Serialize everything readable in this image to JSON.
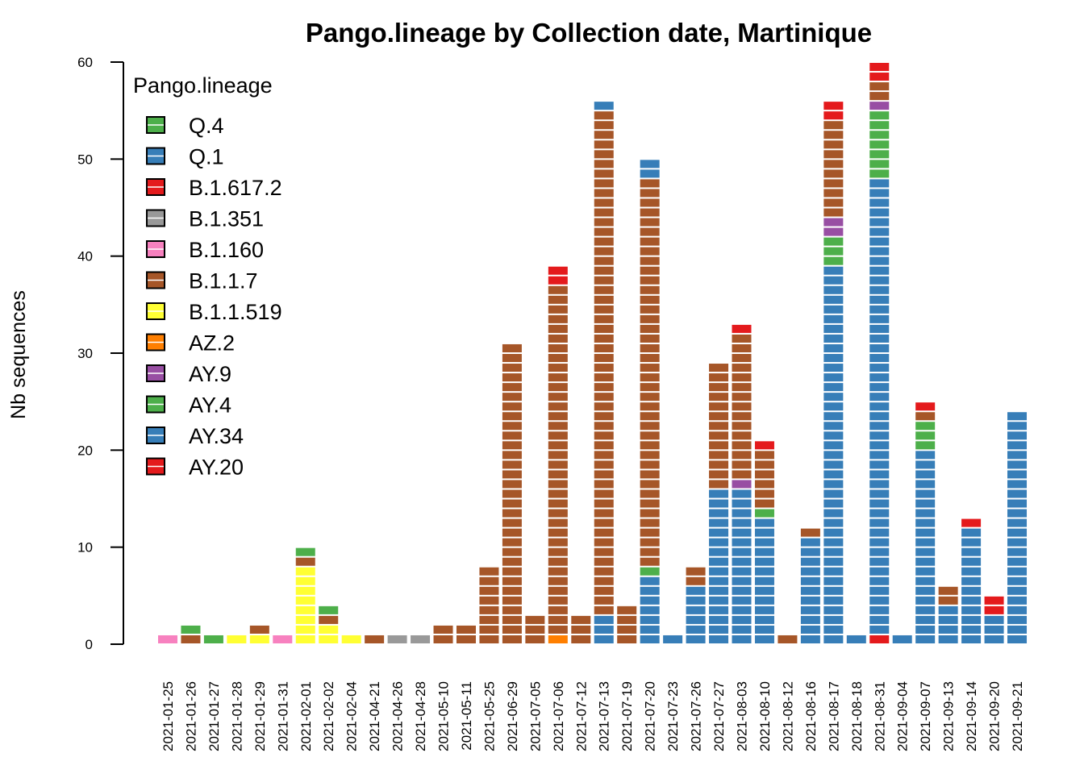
{
  "chart_data": {
    "type": "bar",
    "stacked": true,
    "title": "Pango.lineage by Collection date, Martinique",
    "xlabel": "",
    "ylabel": "Nb sequences",
    "ylim": [
      0,
      60
    ],
    "yticks": [
      0,
      10,
      20,
      30,
      40,
      50,
      60
    ],
    "grid": false,
    "legend": {
      "title": "Pango.lineage",
      "placement": "top-left",
      "entries": [
        "Q.4",
        "Q.1",
        "B.1.617.2",
        "B.1.351",
        "B.1.160",
        "B.1.1.7",
        "B.1.1.519",
        "AZ.2",
        "AY.9",
        "AY.4",
        "AY.34",
        "AY.20"
      ]
    },
    "colors": {
      "Q.4": "#4daf4a",
      "Q.1": "#377eb8",
      "B.1.617.2": "#e41a1c",
      "B.1.351": "#999999",
      "B.1.160": "#f781bf",
      "B.1.1.7": "#a65628",
      "B.1.1.519": "#ffff33",
      "AZ.2": "#ff7f00",
      "AY.9": "#984ea3",
      "AY.4": "#4daf4a",
      "AY.34": "#377eb8",
      "AY.20": "#e41a1c"
    },
    "categories": [
      "2021-01-25",
      "2021-01-26",
      "2021-01-27",
      "2021-01-28",
      "2021-01-29",
      "2021-01-31",
      "2021-02-01",
      "2021-02-02",
      "2021-02-04",
      "2021-04-21",
      "2021-04-26",
      "2021-04-28",
      "2021-05-10",
      "2021-05-11",
      "2021-05-25",
      "2021-06-29",
      "2021-07-05",
      "2021-07-06",
      "2021-07-12",
      "2021-07-13",
      "2021-07-19",
      "2021-07-20",
      "2021-07-23",
      "2021-07-26",
      "2021-07-27",
      "2021-08-03",
      "2021-08-10",
      "2021-08-12",
      "2021-08-16",
      "2021-08-17",
      "2021-08-18",
      "2021-08-31",
      "2021-09-04",
      "2021-09-07",
      "2021-09-13",
      "2021-09-14",
      "2021-09-20",
      "2021-09-21"
    ],
    "series": [
      {
        "name": "B.1.160",
        "values": [
          1,
          0,
          0,
          0,
          0,
          1,
          0,
          0,
          0,
          0,
          0,
          0,
          0,
          0,
          0,
          0,
          0,
          0,
          0,
          0,
          0,
          0,
          0,
          0,
          0,
          0,
          0,
          0,
          0,
          0,
          0,
          0,
          0,
          0,
          0,
          0,
          0,
          0
        ]
      },
      {
        "name": "B.1.1.519",
        "values": [
          0,
          0,
          0,
          1,
          1,
          0,
          8,
          2,
          1,
          0,
          0,
          0,
          0,
          0,
          0,
          0,
          0,
          0,
          0,
          0,
          0,
          0,
          0,
          0,
          0,
          0,
          0,
          0,
          0,
          0,
          0,
          0,
          0,
          0,
          0,
          0,
          0,
          0
        ]
      },
      {
        "name": "B.1.351",
        "values": [
          0,
          0,
          0,
          0,
          0,
          0,
          0,
          0,
          0,
          0,
          1,
          1,
          0,
          0,
          0,
          0,
          0,
          0,
          0,
          0,
          0,
          0,
          0,
          0,
          0,
          0,
          0,
          0,
          0,
          0,
          0,
          0,
          0,
          0,
          0,
          0,
          0,
          0
        ]
      },
      {
        "name": "AZ.2",
        "values": [
          0,
          0,
          0,
          0,
          0,
          0,
          0,
          0,
          0,
          0,
          0,
          0,
          0,
          0,
          0,
          0,
          0,
          1,
          0,
          0,
          0,
          0,
          0,
          0,
          0,
          0,
          0,
          0,
          0,
          0,
          0,
          0,
          0,
          0,
          0,
          0,
          0,
          0
        ]
      },
      {
        "name": "AY.20",
        "values": [
          0,
          0,
          0,
          0,
          0,
          0,
          0,
          0,
          0,
          0,
          0,
          0,
          0,
          0,
          0,
          0,
          0,
          0,
          0,
          0,
          0,
          0,
          0,
          0,
          0,
          0,
          0,
          0,
          0,
          0,
          0,
          1,
          0,
          0,
          0,
          0,
          0,
          0
        ]
      },
      {
        "name": "AY.34",
        "values": [
          0,
          0,
          0,
          0,
          0,
          0,
          0,
          0,
          0,
          0,
          0,
          0,
          0,
          0,
          0,
          0,
          0,
          0,
          0,
          3,
          0,
          7,
          1,
          6,
          16,
          16,
          13,
          0,
          11,
          39,
          1,
          47,
          1,
          20,
          4,
          12,
          3,
          24
        ]
      },
      {
        "name": "AY.4",
        "values": [
          0,
          0,
          0,
          0,
          0,
          0,
          0,
          0,
          0,
          0,
          0,
          0,
          0,
          0,
          0,
          0,
          0,
          0,
          0,
          0,
          0,
          1,
          0,
          0,
          0,
          0,
          1,
          0,
          0,
          3,
          0,
          7,
          0,
          3,
          0,
          0,
          0,
          0
        ]
      },
      {
        "name": "AY.9",
        "values": [
          0,
          0,
          0,
          0,
          0,
          0,
          0,
          0,
          0,
          0,
          0,
          0,
          0,
          0,
          0,
          0,
          0,
          0,
          0,
          0,
          0,
          0,
          0,
          0,
          0,
          1,
          0,
          0,
          0,
          2,
          0,
          1,
          0,
          0,
          0,
          0,
          0,
          0
        ]
      },
      {
        "name": "B.1.1.7",
        "values": [
          0,
          1,
          0,
          0,
          1,
          0,
          1,
          1,
          0,
          1,
          0,
          0,
          2,
          2,
          8,
          31,
          3,
          36,
          3,
          52,
          4,
          40,
          0,
          2,
          13,
          15,
          6,
          1,
          1,
          10,
          0,
          2,
          0,
          1,
          2,
          0,
          0,
          0
        ]
      },
      {
        "name": "Q.4",
        "values": [
          0,
          1,
          1,
          0,
          0,
          0,
          1,
          1,
          0,
          0,
          0,
          0,
          0,
          0,
          0,
          0,
          0,
          0,
          0,
          0,
          0,
          0,
          0,
          0,
          0,
          0,
          0,
          0,
          0,
          0,
          0,
          0,
          0,
          0,
          0,
          0,
          0,
          0
        ]
      },
      {
        "name": "B.1.617.2",
        "values": [
          0,
          0,
          0,
          0,
          0,
          0,
          0,
          0,
          0,
          0,
          0,
          0,
          0,
          0,
          0,
          0,
          0,
          2,
          0,
          0,
          0,
          0,
          0,
          0,
          0,
          1,
          1,
          0,
          0,
          2,
          0,
          2,
          0,
          1,
          0,
          1,
          2,
          0
        ]
      },
      {
        "name": "Q.1",
        "values": [
          0,
          0,
          0,
          0,
          0,
          0,
          0,
          0,
          0,
          0,
          0,
          0,
          0,
          0,
          0,
          0,
          0,
          0,
          0,
          1,
          0,
          2,
          0,
          0,
          0,
          0,
          0,
          0,
          0,
          0,
          0,
          0,
          0,
          0,
          0,
          0,
          0,
          0
        ]
      }
    ]
  }
}
